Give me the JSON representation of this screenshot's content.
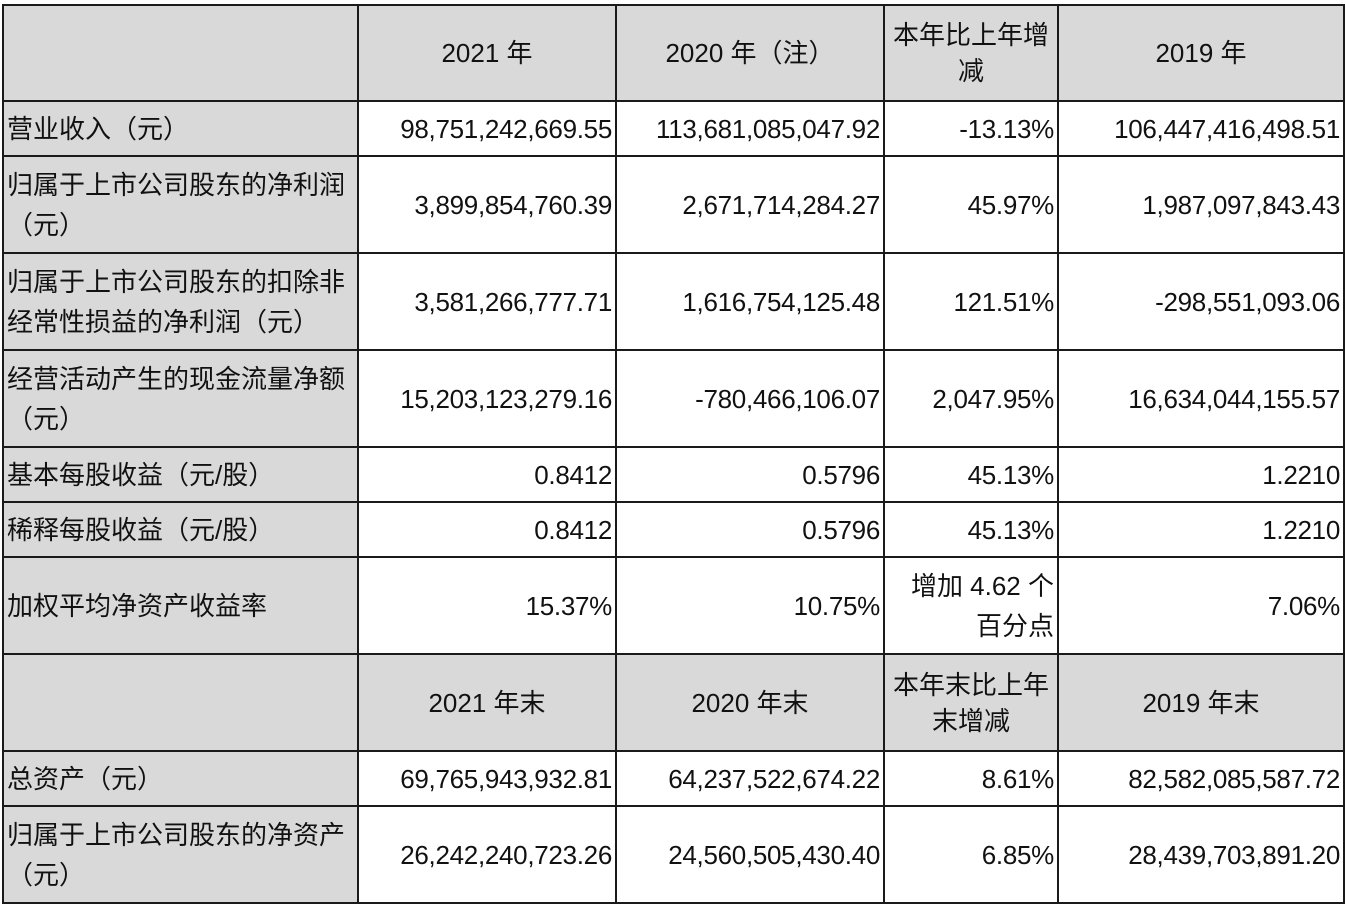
{
  "header1": {
    "y2021": "2021 年",
    "y2020": "2020 年（注）",
    "change": "本年比上年增减",
    "y2019": "2019 年"
  },
  "rows1": [
    {
      "label": "营业收入（元）",
      "v2021": "98,751,242,669.55",
      "v2020": "113,681,085,047.92",
      "change": "-13.13%",
      "v2019": "106,447,416,498.51"
    },
    {
      "label": "归属于上市公司股东的净利润（元）",
      "v2021": "3,899,854,760.39",
      "v2020": "2,671,714,284.27",
      "change": "45.97%",
      "v2019": "1,987,097,843.43"
    },
    {
      "label": "归属于上市公司股东的扣除非经常性损益的净利润（元）",
      "v2021": "3,581,266,777.71",
      "v2020": "1,616,754,125.48",
      "change": "121.51%",
      "v2019": "-298,551,093.06"
    },
    {
      "label": "经营活动产生的现金流量净额（元）",
      "v2021": "15,203,123,279.16",
      "v2020": "-780,466,106.07",
      "change": "2,047.95%",
      "v2019": "16,634,044,155.57"
    },
    {
      "label": "基本每股收益（元/股）",
      "v2021": "0.8412",
      "v2020": "0.5796",
      "change": "45.13%",
      "v2019": "1.2210"
    },
    {
      "label": "稀释每股收益（元/股）",
      "v2021": "0.8412",
      "v2020": "0.5796",
      "change": "45.13%",
      "v2019": "1.2210"
    },
    {
      "label": "加权平均净资产收益率",
      "v2021": "15.37%",
      "v2020": "10.75%",
      "change": "增加 4.62 个百分点",
      "v2019": "7.06%"
    }
  ],
  "header2": {
    "y2021": "2021 年末",
    "y2020": "2020 年末",
    "change": "本年末比上年末增减",
    "y2019": "2019 年末"
  },
  "rows2": [
    {
      "label": "总资产（元）",
      "v2021": "69,765,943,932.81",
      "v2020": "64,237,522,674.22",
      "change": "8.61%",
      "v2019": "82,582,085,587.72"
    },
    {
      "label": "归属于上市公司股东的净资产（元）",
      "v2021": "26,242,240,723.26",
      "v2020": "24,560,505,430.40",
      "change": "6.85%",
      "v2019": "28,439,703,891.20"
    }
  ]
}
